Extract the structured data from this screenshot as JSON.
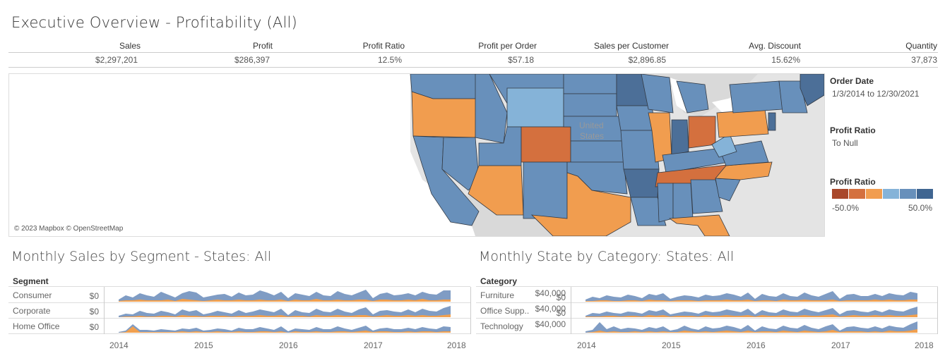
{
  "title": "Executive Overview - Profitability (All)",
  "kpis": [
    {
      "label": "Sales",
      "value": "$2,297,201"
    },
    {
      "label": "Profit",
      "value": "$286,397"
    },
    {
      "label": "Profit Ratio",
      "value": "12.5%"
    },
    {
      "label": "Profit per Order",
      "value": "$57.18"
    },
    {
      "label": "Sales per Customer",
      "value": "$2,896.85"
    },
    {
      "label": "Avg. Discount",
      "value": "15.62%"
    },
    {
      "label": "Quantity",
      "value": "37,873"
    }
  ],
  "map": {
    "credit": "© 2023 Mapbox © OpenStreetMap",
    "country_label_1": "United",
    "country_label_2": "States",
    "colors": {
      "strong_neg": "#d4703e",
      "neg": "#f19d4f",
      "light_pos": "#85b3d8",
      "pos": "#6890bb",
      "strong_pos": "#4c6f98",
      "land": "#e4e4e4",
      "water": "#ffffff",
      "border": "#333a44"
    }
  },
  "filters": {
    "order_date_title": "Order Date",
    "order_date_value": "1/3/2014 to 12/30/2021",
    "profit_ratio_title": "Profit Ratio",
    "profit_ratio_value": "To Null",
    "legend_title": "Profit Ratio",
    "legend_min": "-50.0%",
    "legend_max": "50.0%",
    "legend_colors": [
      "#a9482b",
      "#d4703e",
      "#f19d4f",
      "#85b3d8",
      "#6890bb",
      "#3f6591"
    ]
  },
  "segment_panel": {
    "title": "Monthly Sales by Segment - States: All",
    "header": "Segment",
    "rows": [
      {
        "label": "Consumer",
        "axis": "$0"
      },
      {
        "label": "Corporate",
        "axis": "$0"
      },
      {
        "label": "Home Office",
        "axis": "$0"
      }
    ],
    "years": [
      "2014",
      "2015",
      "2016",
      "2017",
      "2018"
    ]
  },
  "category_panel": {
    "title": "Monthly State by Category: States: All",
    "header": "Category",
    "rows": [
      {
        "label": "Furniture",
        "axis_top": "$40,000",
        "axis": "$0"
      },
      {
        "label": "Office Supp..",
        "axis_top": "$40,000",
        "axis": "$0"
      },
      {
        "label": "Technology",
        "axis_top": "$40,000",
        "axis": "$0"
      }
    ],
    "years": [
      "2014",
      "2015",
      "2016",
      "2017",
      "2018"
    ]
  },
  "chart_data": [
    {
      "type": "area",
      "title": "Monthly Sales by Segment - States: All",
      "x_range": [
        "2014-01",
        "2017-12"
      ],
      "series_colors": {
        "sales": "#7f9cc4",
        "profit": "#f1a04f"
      },
      "series": [
        {
          "name": "Consumer",
          "sales": [
            3,
            9,
            6,
            12,
            9,
            7,
            14,
            10,
            6,
            12,
            15,
            13,
            6,
            8,
            10,
            11,
            7,
            13,
            9,
            10,
            16,
            13,
            9,
            14,
            5,
            12,
            10,
            8,
            14,
            9,
            8,
            15,
            11,
            9,
            13,
            17,
            5,
            11,
            13,
            9,
            10,
            12,
            9,
            14,
            11,
            10,
            16,
            16
          ],
          "profit": [
            1,
            2,
            2,
            3,
            2,
            2,
            2,
            3,
            1,
            4,
            3,
            2,
            1,
            2,
            3,
            2,
            2,
            3,
            2,
            2,
            3,
            2,
            2,
            3,
            1,
            3,
            2,
            2,
            4,
            2,
            2,
            3,
            2,
            2,
            3,
            3,
            1,
            3,
            3,
            2,
            2,
            3,
            2,
            4,
            2,
            2,
            3,
            3
          ]
        },
        {
          "name": "Corporate",
          "sales": [
            2,
            5,
            4,
            9,
            6,
            5,
            9,
            7,
            4,
            11,
            8,
            10,
            4,
            6,
            9,
            7,
            5,
            10,
            6,
            8,
            11,
            9,
            7,
            12,
            3,
            10,
            7,
            6,
            12,
            8,
            7,
            12,
            8,
            6,
            11,
            14,
            4,
            9,
            10,
            8,
            7,
            11,
            7,
            12,
            9,
            8,
            13,
            16
          ],
          "profit": [
            0,
            1,
            1,
            2,
            1,
            1,
            2,
            2,
            1,
            3,
            2,
            2,
            1,
            2,
            2,
            2,
            1,
            2,
            2,
            2,
            3,
            2,
            2,
            3,
            1,
            2,
            2,
            1,
            3,
            2,
            2,
            3,
            2,
            2,
            3,
            3,
            1,
            2,
            3,
            2,
            2,
            3,
            2,
            3,
            2,
            2,
            3,
            4
          ]
        },
        {
          "name": "Home Office",
          "sales": [
            1,
            3,
            12,
            4,
            4,
            3,
            5,
            4,
            3,
            6,
            5,
            7,
            3,
            4,
            6,
            5,
            3,
            7,
            5,
            5,
            8,
            6,
            4,
            9,
            2,
            6,
            5,
            4,
            8,
            5,
            5,
            9,
            6,
            4,
            7,
            10,
            3,
            6,
            7,
            5,
            5,
            7,
            5,
            8,
            6,
            5,
            9,
            8
          ],
          "profit": [
            0,
            1,
            9,
            1,
            1,
            1,
            1,
            1,
            1,
            2,
            1,
            2,
            1,
            1,
            2,
            1,
            1,
            2,
            1,
            1,
            2,
            2,
            1,
            2,
            0,
            2,
            1,
            1,
            2,
            1,
            1,
            2,
            2,
            1,
            2,
            3,
            1,
            2,
            2,
            1,
            1,
            2,
            1,
            2,
            2,
            1,
            2,
            2
          ]
        }
      ]
    },
    {
      "type": "area",
      "title": "Monthly State by Category: States: All",
      "x_range": [
        "2014-01",
        "2017-12"
      ],
      "series_colors": {
        "sales": "#7f9cc4",
        "profit": "#f1a04f"
      },
      "series": [
        {
          "name": "Furniture",
          "sales": [
            3,
            7,
            5,
            9,
            7,
            6,
            10,
            8,
            5,
            11,
            9,
            12,
            4,
            7,
            9,
            8,
            6,
            10,
            8,
            9,
            12,
            10,
            7,
            13,
            4,
            11,
            8,
            7,
            12,
            8,
            7,
            13,
            9,
            7,
            11,
            15,
            4,
            10,
            11,
            8,
            8,
            11,
            8,
            12,
            10,
            9,
            14,
            12
          ],
          "profit": [
            1,
            1,
            2,
            2,
            1,
            1,
            2,
            2,
            1,
            3,
            2,
            2,
            1,
            2,
            2,
            2,
            1,
            2,
            2,
            2,
            3,
            2,
            2,
            3,
            1,
            2,
            2,
            1,
            3,
            2,
            2,
            3,
            2,
            2,
            2,
            3,
            1,
            2,
            2,
            2,
            2,
            3,
            2,
            3,
            2,
            2,
            3,
            3
          ]
        },
        {
          "name": "Office Supplies",
          "sales": [
            2,
            6,
            5,
            8,
            6,
            5,
            8,
            7,
            5,
            10,
            8,
            11,
            4,
            6,
            8,
            7,
            5,
            9,
            7,
            8,
            11,
            9,
            7,
            12,
            4,
            10,
            7,
            6,
            11,
            8,
            7,
            12,
            9,
            7,
            10,
            13,
            4,
            9,
            10,
            8,
            7,
            10,
            7,
            11,
            9,
            8,
            12,
            15
          ],
          "profit": [
            1,
            1,
            1,
            2,
            2,
            1,
            2,
            2,
            1,
            3,
            2,
            3,
            1,
            2,
            2,
            2,
            1,
            3,
            2,
            2,
            3,
            2,
            2,
            3,
            1,
            3,
            2,
            2,
            3,
            2,
            2,
            3,
            2,
            2,
            3,
            4,
            1,
            2,
            3,
            2,
            2,
            3,
            2,
            3,
            2,
            2,
            3,
            4
          ]
        },
        {
          "name": "Technology",
          "sales": [
            2,
            4,
            15,
            5,
            9,
            5,
            7,
            6,
            4,
            8,
            6,
            9,
            3,
            5,
            10,
            6,
            4,
            9,
            6,
            7,
            10,
            8,
            5,
            11,
            3,
            9,
            6,
            5,
            10,
            7,
            6,
            11,
            7,
            5,
            9,
            12,
            3,
            8,
            9,
            7,
            6,
            9,
            6,
            10,
            8,
            7,
            12,
            16
          ],
          "profit": [
            0,
            1,
            3,
            1,
            2,
            1,
            1,
            2,
            1,
            2,
            1,
            2,
            1,
            1,
            3,
            2,
            1,
            2,
            1,
            2,
            3,
            2,
            1,
            3,
            1,
            2,
            2,
            1,
            3,
            2,
            1,
            3,
            2,
            1,
            2,
            4,
            1,
            2,
            2,
            2,
            1,
            2,
            1,
            3,
            2,
            2,
            3,
            5
          ]
        }
      ]
    }
  ]
}
